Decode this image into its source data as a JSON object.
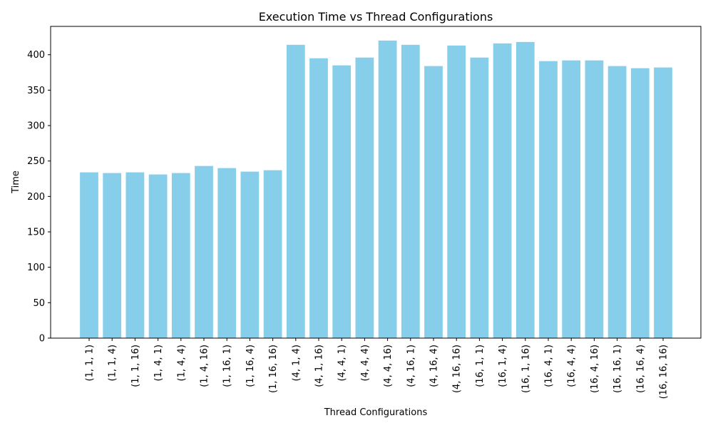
{
  "chart_data": {
    "type": "bar",
    "title": "Execution Time vs Thread Configurations",
    "xlabel": "Thread Configurations",
    "ylabel": "Time",
    "ylim": [
      0,
      440
    ],
    "yticks": [
      0,
      50,
      100,
      150,
      200,
      250,
      300,
      350,
      400
    ],
    "grid": false,
    "bar_color": "#87ceeb",
    "categories": [
      "(1, 1, 1)",
      "(1, 1, 4)",
      "(1, 1, 16)",
      "(1, 4, 1)",
      "(1, 4, 4)",
      "(1, 4, 16)",
      "(1, 16, 1)",
      "(1, 16, 4)",
      "(1, 16, 16)",
      "(4, 1, 4)",
      "(4, 1, 16)",
      "(4, 4, 1)",
      "(4, 4, 4)",
      "(4, 4, 16)",
      "(4, 16, 1)",
      "(4, 16, 4)",
      "(4, 16, 16)",
      "(16, 1, 1)",
      "(16, 1, 4)",
      "(16, 1, 16)",
      "(16, 4, 1)",
      "(16, 4, 4)",
      "(16, 4, 16)",
      "(16, 16, 1)",
      "(16, 16, 4)",
      "(16, 16, 16)"
    ],
    "values": [
      234,
      233,
      234,
      231,
      233,
      243,
      240,
      235,
      237,
      414,
      395,
      385,
      396,
      420,
      414,
      384,
      413,
      396,
      416,
      418,
      391,
      392,
      392,
      384,
      381,
      382
    ]
  }
}
